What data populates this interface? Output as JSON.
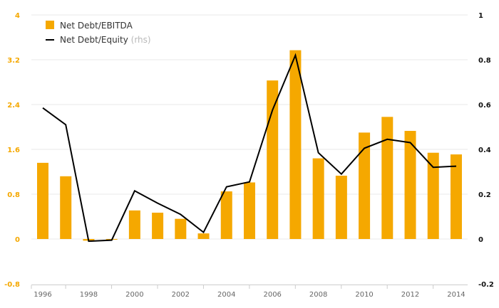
{
  "chart_data": {
    "type": "bar",
    "x": [
      1996,
      1997,
      1998,
      1999,
      2000,
      2001,
      2002,
      2003,
      2004,
      2005,
      2006,
      2007,
      2008,
      2009,
      2010,
      2011,
      2012,
      2013,
      2014
    ],
    "x_tick_labels": [
      "1996",
      "1998",
      "2000",
      "2002",
      "2004",
      "2006",
      "2008",
      "2010",
      "2012",
      "2014"
    ],
    "y_left": {
      "range": [
        -0.8,
        4
      ],
      "ticks": [
        -0.8,
        0,
        0.8,
        1.6,
        2.4,
        3.2,
        4
      ],
      "tick_labels": [
        "-0.8",
        "0",
        "0.8",
        "1.6",
        "2.4",
        "3.2",
        "4"
      ]
    },
    "y_right": {
      "range": [
        -0.2,
        1
      ],
      "ticks": [
        -0.2,
        0,
        0.2,
        0.4,
        0.6,
        0.8,
        1
      ],
      "tick_labels": [
        "-0.2",
        "0",
        "0.2",
        "0.4",
        "0.6",
        "0.8",
        "1"
      ]
    },
    "grid": true,
    "legend_position": "top-left",
    "series": [
      {
        "name": "Net Debt/EBITDA",
        "kind": "bar",
        "axis": "left",
        "color": "#f5a800",
        "values": [
          1.36,
          1.12,
          -0.03,
          -0.01,
          0.51,
          0.47,
          0.36,
          0.1,
          0.85,
          1.01,
          2.83,
          3.37,
          1.44,
          1.13,
          1.9,
          2.18,
          1.93,
          1.54,
          1.51
        ]
      },
      {
        "name": "Net Debt/Equity",
        "name_suffix": "(rhs)",
        "kind": "line",
        "axis": "right",
        "color": "#000000",
        "values": [
          0.585,
          0.51,
          -0.01,
          -0.005,
          0.215,
          0.16,
          0.11,
          0.03,
          0.233,
          0.255,
          0.575,
          0.82,
          0.385,
          0.29,
          0.405,
          0.445,
          0.43,
          0.32,
          0.325
        ]
      }
    ]
  }
}
